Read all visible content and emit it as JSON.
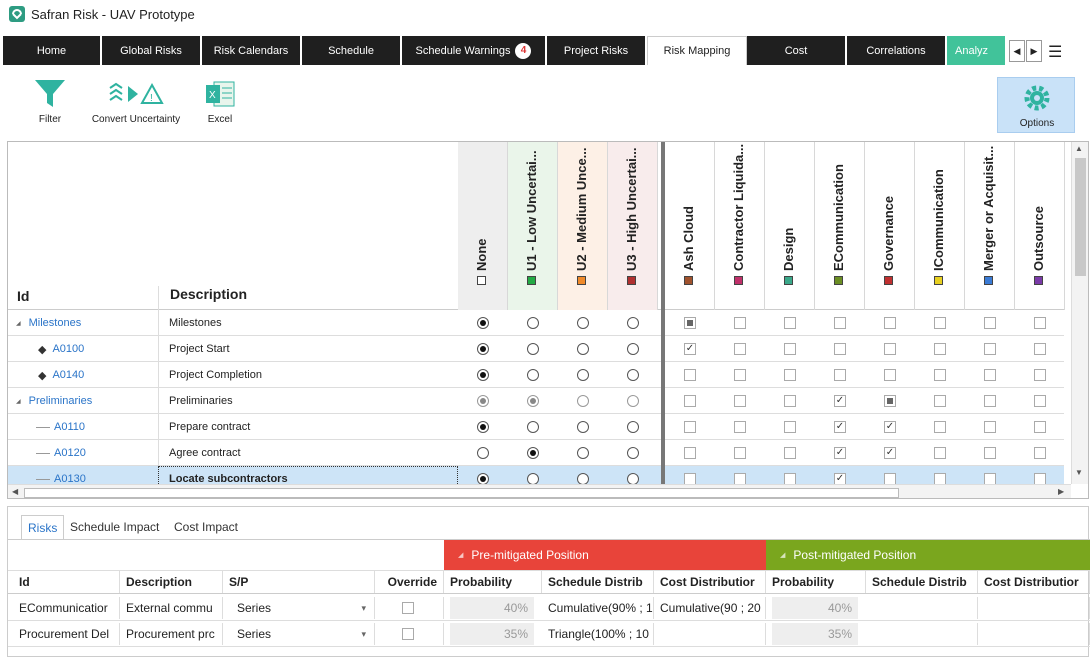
{
  "app": {
    "title": "Safran Risk - UAV Prototype"
  },
  "tabs": [
    "Home",
    "Global Risks",
    "Risk Calendars",
    "Schedule",
    "Schedule Warnings",
    "Project Risks",
    "Risk Mapping",
    "Cost",
    "Correlations",
    "Analyz"
  ],
  "schedule_warnings_count": "4",
  "active_tab": "Risk Mapping",
  "ribbon": {
    "filter": "Filter",
    "convert": "Convert Uncertainty",
    "excel": "Excel",
    "options": "Options"
  },
  "grid": {
    "id_header": "Id",
    "desc_header": "Description",
    "uncertainty_cols": [
      {
        "label": "None",
        "color": "#ffffff"
      },
      {
        "label": "U1 - Low Uncertai...",
        "color": "#22aa44"
      },
      {
        "label": "U2 - Medium Unce...",
        "color": "#f08a2a"
      },
      {
        "label": "U3 - High Uncertai...",
        "color": "#b03030"
      }
    ],
    "risk_cols": [
      {
        "label": "Ash Cloud",
        "color": "#a0522d"
      },
      {
        "label": "Contractor Liquida...",
        "color": "#c0306a"
      },
      {
        "label": "Design",
        "color": "#3aa88a"
      },
      {
        "label": "ECommunication",
        "color": "#6b8e23"
      },
      {
        "label": "Governance",
        "color": "#c03030"
      },
      {
        "label": "ICommunication",
        "color": "#e8d020"
      },
      {
        "label": "Merger or Acquisit...",
        "color": "#3a7bd5"
      },
      {
        "label": "Outsource",
        "color": "#7a3aa8"
      }
    ],
    "rows": [
      {
        "id": "Milestones",
        "desc": "Milestones",
        "level": 0,
        "unc": 0,
        "risks": [
          "ind",
          "",
          "",
          "",
          "",
          "",
          "",
          ""
        ]
      },
      {
        "id": "A0100",
        "desc": "Project Start",
        "level": 1,
        "unc": 0,
        "risks": [
          "chk",
          "",
          "",
          "",
          "",
          "",
          "",
          ""
        ]
      },
      {
        "id": "A0140",
        "desc": "Project Completion",
        "level": 1,
        "unc": 0,
        "risks": [
          "",
          "",
          "",
          "",
          "",
          "",
          "",
          ""
        ]
      },
      {
        "id": "Preliminaries",
        "desc": "Preliminaries",
        "level": 0,
        "unc": "mixed",
        "risks": [
          "",
          "",
          "",
          "chk",
          "ind",
          "",
          "",
          ""
        ]
      },
      {
        "id": "A0110",
        "desc": "Prepare contract",
        "level": 2,
        "unc": 0,
        "risks": [
          "",
          "",
          "",
          "chk",
          "chk",
          "",
          "",
          ""
        ]
      },
      {
        "id": "A0120",
        "desc": "Agree contract",
        "level": 2,
        "unc": 1,
        "risks": [
          "",
          "",
          "",
          "chk",
          "chk",
          "",
          "",
          ""
        ]
      },
      {
        "id": "A0130",
        "desc": "Locate subcontractors",
        "level": 2,
        "unc": 0,
        "risks": [
          "",
          "",
          "",
          "chk",
          "",
          "",
          "",
          ""
        ]
      }
    ]
  },
  "lower": {
    "tabs": [
      "Risks",
      "Schedule Impact",
      "Cost Impact"
    ],
    "pre_label": "Pre-mitigated Position",
    "post_label": "Post-mitigated Position",
    "pre_color": "#e8443a",
    "post_color": "#7aa61e",
    "headers": [
      "Id",
      "Description",
      "S/P",
      "Override",
      "Probability",
      "Schedule Distrib",
      "Cost Distributior",
      "Probability",
      "Schedule Distrib",
      "Cost Distributior"
    ],
    "rows": [
      {
        "id": "ECommunicatior",
        "desc": "External commu",
        "sp": "Series",
        "pre_prob": "40%",
        "pre_sched": "Cumulative(90% ; 1",
        "pre_cost": "Cumulative(90 ; 20",
        "post_prob": "40%"
      },
      {
        "id": "Procurement Del",
        "desc": "Procurement prc",
        "sp": "Series",
        "pre_prob": "35%",
        "pre_sched": "Triangle(100% ; 10",
        "pre_cost": "",
        "post_prob": "35%"
      }
    ]
  }
}
